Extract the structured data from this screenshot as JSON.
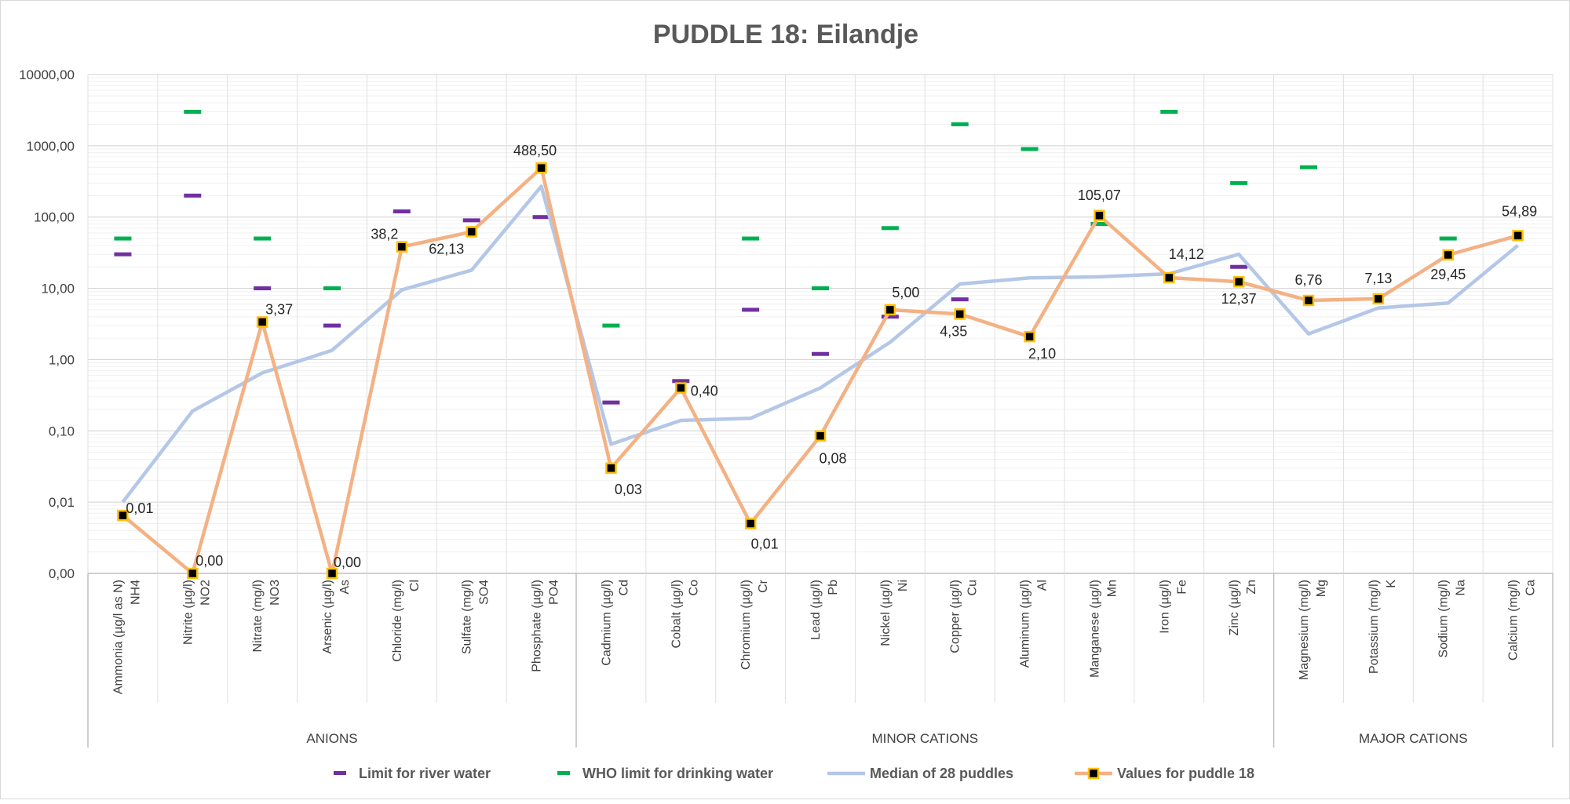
{
  "chart_data": {
    "type": "line",
    "title": "PUDDLE 18: Eilandje",
    "yscale": "log",
    "ylim": [
      0.001,
      10000
    ],
    "ytick_values": [
      0.001,
      0.01,
      0.1,
      1,
      10,
      100,
      1000,
      10000
    ],
    "ytick_labels": [
      "0,00",
      "0,01",
      "0,10",
      "1,00",
      "10,00",
      "100,00",
      "1000,00",
      "10000,00"
    ],
    "grid": true,
    "legend_position": "bottom",
    "categories": [
      [
        "Ammonia (µg/l as N)",
        "NH4"
      ],
      [
        "Nitrite (µg/l)",
        "NO2"
      ],
      [
        "Nitrate (mg/l)",
        "NO3"
      ],
      [
        "Arsenic (µg/l)",
        "As"
      ],
      [
        "Chloride (mg/l)",
        "Cl"
      ],
      [
        "Sulfate (mg/l)",
        "SO4"
      ],
      [
        "Phosphate (µg/l)",
        "PO4"
      ],
      [
        "Cadmium (µg/l)",
        "Cd"
      ],
      [
        "Cobalt (µg/l)",
        "Co"
      ],
      [
        "Chromium (µg/l)",
        "Cr"
      ],
      [
        "Lead (µg/l)",
        "Pb"
      ],
      [
        "Nickel (µg/l)",
        "Ni"
      ],
      [
        "Copper (µg/l)",
        "Cu"
      ],
      [
        "Aluminum (µg/l)",
        "Al"
      ],
      [
        "Manganese (µg/l)",
        "Mn"
      ],
      [
        "Iron (µg/l)",
        "Fe"
      ],
      [
        "Zinc (µg/l)",
        "Zn"
      ],
      [
        "Magnesium (mg/l)",
        "Mg"
      ],
      [
        "Potassium (mg/l)",
        "K"
      ],
      [
        "Sodium (mg/l)",
        "Na"
      ],
      [
        "Calcium (mg/l)",
        "Ca"
      ]
    ],
    "groups": [
      {
        "label": "ANIONS",
        "start": 0,
        "end": 6
      },
      {
        "label": "MINOR CATIONS",
        "start": 7,
        "end": 16
      },
      {
        "label": "MAJOR CATIONS",
        "start": 17,
        "end": 20
      }
    ],
    "series": [
      {
        "name": "Limit for river water",
        "style": "dash-marker",
        "color": "#7030a0",
        "values": [
          30,
          200,
          10,
          3,
          120,
          90,
          100,
          0.25,
          0.5,
          5,
          1.2,
          4,
          7,
          null,
          null,
          null,
          20,
          null,
          null,
          null,
          null
        ]
      },
      {
        "name": "WHO limit for drinking water",
        "style": "dash-marker",
        "color": "#00b050",
        "values": [
          50,
          3000,
          50,
          10,
          null,
          null,
          null,
          3,
          null,
          50,
          10,
          70,
          2000,
          900,
          80,
          3000,
          300,
          500,
          null,
          50,
          null
        ]
      },
      {
        "name": "Median of 28 puddles",
        "style": "line",
        "color": "#b4c7e7",
        "values": [
          0.01,
          0.19,
          0.65,
          1.35,
          9.5,
          18,
          270,
          0.065,
          0.14,
          0.15,
          0.4,
          1.75,
          11.5,
          14,
          14.5,
          16,
          30,
          2.3,
          5.3,
          6.2,
          40
        ]
      },
      {
        "name": "Values for puddle 18",
        "style": "line-marker",
        "color": "#f4b183",
        "marker_color": "#000000",
        "marker_edge_color": "#ffc000",
        "values": [
          0.0065,
          0.001,
          3.37,
          0.001,
          38.2,
          62.13,
          488.5,
          0.03,
          0.4,
          0.005,
          0.085,
          5.0,
          4.35,
          2.1,
          105.07,
          14.12,
          12.37,
          6.76,
          7.13,
          29.45,
          54.89
        ],
        "data_labels": [
          "0,01",
          "0,00",
          "3,37",
          "0,00",
          "38,2",
          "62,13",
          "488,50",
          "0,03",
          "0,40",
          "0,01",
          "0,08",
          "5,00",
          "4,35",
          "2,10",
          "105,07",
          "14,12",
          "12,37",
          "6,76",
          "7,13",
          "29,45",
          "54,89"
        ]
      }
    ]
  }
}
